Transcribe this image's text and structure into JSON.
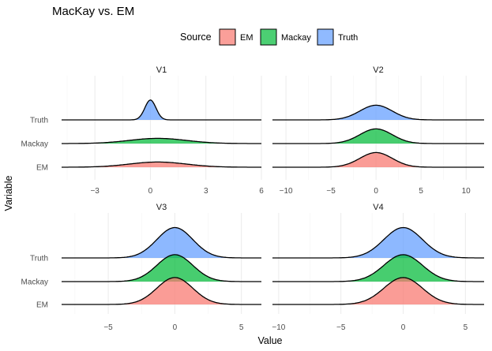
{
  "chart_data": {
    "type": "ridgeline",
    "title": "MacKay vs. EM",
    "xlabel": "Value",
    "ylabel": "Variable",
    "legend": {
      "title": "Source",
      "placement": "top",
      "entries": [
        {
          "name": "EM",
          "color": "#F8766D"
        },
        {
          "name": "Mackay",
          "color": "#00BA38"
        },
        {
          "name": "Truth",
          "color": "#619CFF"
        }
      ]
    },
    "categories": [
      "EM",
      "Mackay",
      "Truth"
    ],
    "grid": true,
    "panels": [
      {
        "name": "V1",
        "xlim": [
          -4.8,
          6.0
        ],
        "xticks": [
          -3,
          0,
          3,
          6
        ],
        "series": [
          {
            "name": "EM",
            "mean": 0.4,
            "sd": 1.55,
            "height": 0.55
          },
          {
            "name": "Mackay",
            "mean": 0.4,
            "sd": 1.55,
            "height": 0.55
          },
          {
            "name": "Truth",
            "mean": 0.0,
            "sd": 0.3,
            "height": 2.1
          }
        ]
      },
      {
        "name": "V2",
        "xlim": [
          -11.5,
          12.0
        ],
        "xticks": [
          -10,
          -5,
          0,
          5,
          10
        ],
        "series": [
          {
            "name": "EM",
            "mean": 0.0,
            "sd": 1.8,
            "height": 1.55
          },
          {
            "name": "Mackay",
            "mean": 0.0,
            "sd": 1.8,
            "height": 1.55
          },
          {
            "name": "Truth",
            "mean": 0.0,
            "sd": 1.8,
            "height": 1.55
          }
        ]
      },
      {
        "name": "V3",
        "xlim": [
          -8.5,
          6.5
        ],
        "xticks": [
          -5,
          0,
          5
        ],
        "series": [
          {
            "name": "EM",
            "mean": 0.0,
            "sd": 1.35,
            "height": 1.55
          },
          {
            "name": "Mackay",
            "mean": 0.0,
            "sd": 1.35,
            "height": 1.55
          },
          {
            "name": "Truth",
            "mean": 0.0,
            "sd": 1.35,
            "height": 1.75
          }
        ]
      },
      {
        "name": "V4",
        "xlim": [
          -10.5,
          6.5
        ],
        "xticks": [
          -10,
          -5,
          0,
          5
        ],
        "series": [
          {
            "name": "EM",
            "mean": 0.0,
            "sd": 1.55,
            "height": 1.55
          },
          {
            "name": "Mackay",
            "mean": 0.0,
            "sd": 1.55,
            "height": 1.55
          },
          {
            "name": "Truth",
            "mean": 0.0,
            "sd": 1.55,
            "height": 1.75
          }
        ]
      }
    ]
  }
}
